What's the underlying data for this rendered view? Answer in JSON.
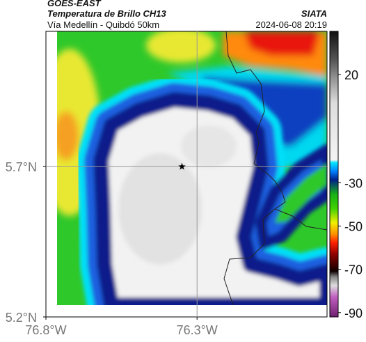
{
  "header": {
    "source": "GOES-EAST",
    "product": "Temperatura de Brillo CH13",
    "region": "Vía Medellín - Quibdó 50km",
    "agency": "SIATA",
    "timestamp": "2024-06-08 20:19"
  },
  "map": {
    "lon_range": [
      -76.8,
      -75.87
    ],
    "lat_range": [
      5.2,
      6.15
    ],
    "lon_ticks": [
      {
        "value": -76.8,
        "label": "76.8°W"
      },
      {
        "value": -76.3,
        "label": "76.3°W"
      }
    ],
    "lat_ticks": [
      {
        "value": 5.2,
        "label": "5.2°N"
      },
      {
        "value": 5.7,
        "label": "5.7°N"
      }
    ],
    "grid": true,
    "marker": {
      "lon": -76.35,
      "lat": 5.7
    }
  },
  "colorbar": {
    "range": [
      -92,
      40
    ],
    "ticks": [
      20,
      -30,
      -50,
      -70,
      -90
    ]
  }
}
